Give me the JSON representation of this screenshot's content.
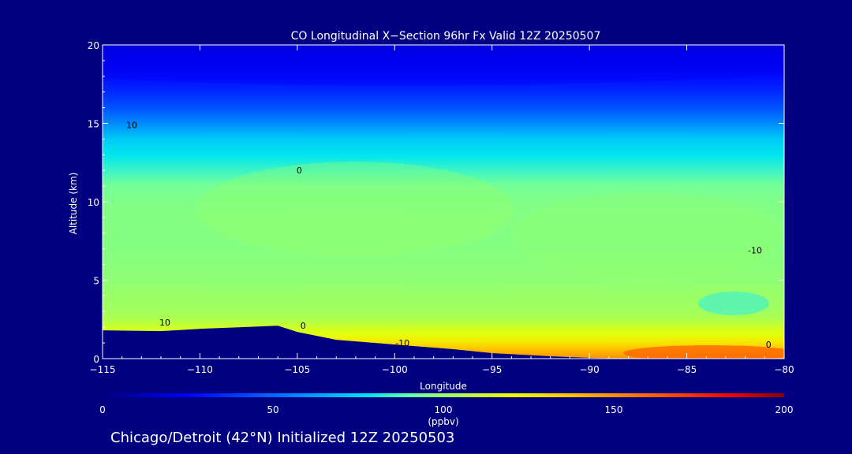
{
  "chart_data": {
    "type": "heatmap",
    "title": "CO Longitudinal X−Section 96hr  Fx Valid 12Z 20250507",
    "xlabel": "Longitude",
    "ylabel": "Altitude (km)",
    "xlim": [
      -115,
      -80
    ],
    "ylim": [
      0,
      20
    ],
    "x_ticks": [
      -115,
      -110,
      -105,
      -100,
      -95,
      -90,
      -85,
      -80
    ],
    "x_tick_labels": [
      "−115",
      "−110",
      "−105",
      "−100",
      "−95",
      "−90",
      "−85",
      "−80"
    ],
    "y_ticks": [
      0,
      5,
      10,
      15,
      20
    ],
    "y_tick_labels": [
      "0",
      "5",
      "10",
      "15",
      "20"
    ],
    "colorbar": {
      "min": 0,
      "max": 200,
      "ticks": [
        0,
        50,
        100,
        150,
        200
      ],
      "tick_labels": [
        "0",
        "50",
        "100",
        "150",
        "200"
      ],
      "unit": "(ppbv)",
      "stops": [
        {
          "v": 0,
          "color": "#000080"
        },
        {
          "v": 25,
          "color": "#0000ff"
        },
        {
          "v": 50,
          "color": "#0066ff"
        },
        {
          "v": 65,
          "color": "#00aaff"
        },
        {
          "v": 78,
          "color": "#00e5ee"
        },
        {
          "v": 90,
          "color": "#66ffaa"
        },
        {
          "v": 100,
          "color": "#99ff66"
        },
        {
          "v": 120,
          "color": "#eeff00"
        },
        {
          "v": 135,
          "color": "#ffcc00"
        },
        {
          "v": 160,
          "color": "#ff6600"
        },
        {
          "v": 185,
          "color": "#ee0000"
        },
        {
          "v": 200,
          "color": "#880000"
        }
      ]
    },
    "profile": {
      "altitudes_km": [
        0,
        0.5,
        1,
        1.5,
        2,
        2.5,
        3,
        4,
        5,
        6,
        7,
        8,
        9,
        10,
        11,
        12,
        13,
        14,
        15,
        16,
        17,
        18,
        19,
        20
      ],
      "co_ppbv": [
        150,
        140,
        128,
        118,
        112,
        105,
        102,
        100,
        98,
        97,
        96,
        96,
        96,
        95,
        93,
        85,
        78,
        72,
        58,
        45,
        35,
        28,
        22,
        18
      ]
    },
    "terrain": {
      "longitudes": [
        -115,
        -112,
        -110,
        -108,
        -106,
        -105,
        -103,
        -100,
        -97,
        -95,
        -92,
        -90,
        -88,
        -85,
        -80
      ],
      "altitudes_km": [
        1.8,
        1.75,
        1.9,
        2.0,
        2.1,
        1.7,
        1.2,
        0.9,
        0.6,
        0.35,
        0.15,
        0.05,
        0.0,
        0.0,
        0.0
      ]
    },
    "contour_labels": [
      {
        "text": "10",
        "lon": -113.5,
        "alt": 14.7
      },
      {
        "text": "0",
        "lon": -104.9,
        "alt": 11.8
      },
      {
        "text": "-10",
        "lon": -81.5,
        "alt": 6.7
      },
      {
        "text": "10",
        "lon": -111.8,
        "alt": 2.1
      },
      {
        "text": "0",
        "lon": -104.7,
        "alt": 1.9
      },
      {
        "text": "-10",
        "lon": -99.6,
        "alt": 0.8
      },
      {
        "text": "0",
        "lon": -80.8,
        "alt": 0.7
      }
    ]
  },
  "footer": {
    "caption": "Chicago/Detroit (42°N) Initialized 12Z 20250503"
  }
}
